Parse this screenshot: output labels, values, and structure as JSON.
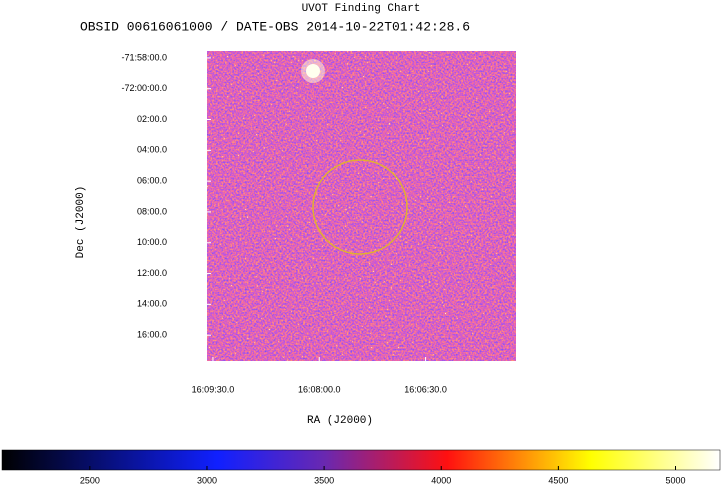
{
  "chart_data": {
    "type": "image",
    "title": "UVOT Finding Chart",
    "subtitle": "OBSID 00616061000 / DATE-OBS 2014-10-22T01:42:28.6",
    "xlabel": "RA (J2000)",
    "ylabel": "Dec (J2000)",
    "xlim": [
      242.396,
      241.306
    ],
    "xticks": [
      {
        "value": 242.375,
        "label": "16:09:30.0"
      },
      {
        "value": 242.0,
        "label": "16:08:00.0"
      },
      {
        "value": 241.625,
        "label": "16:06:30.0"
      }
    ],
    "ylim": [
      -72.2946,
      -71.9592
    ],
    "yticks": [
      {
        "value": -71.9667,
        "label": "-71:58:00.0"
      },
      {
        "value": -72.0,
        "label": "-72:00:00.0"
      },
      {
        "value": -72.0333,
        "label": "02:00.0"
      },
      {
        "value": -72.0667,
        "label": "04:00.0"
      },
      {
        "value": -72.1,
        "label": "06:00.0"
      },
      {
        "value": -72.1333,
        "label": "08:00.0"
      },
      {
        "value": -72.1667,
        "label": "10:00.0"
      },
      {
        "value": -72.2,
        "label": "12:00.0"
      },
      {
        "value": -72.2333,
        "label": "14:00.0"
      },
      {
        "value": -72.2667,
        "label": "16:00.0"
      }
    ],
    "colorbar_lim": [
      2125,
      5190
    ],
    "colorbar_ticks": [
      2500,
      3000,
      3500,
      4000,
      4500,
      5000
    ]
  }
}
